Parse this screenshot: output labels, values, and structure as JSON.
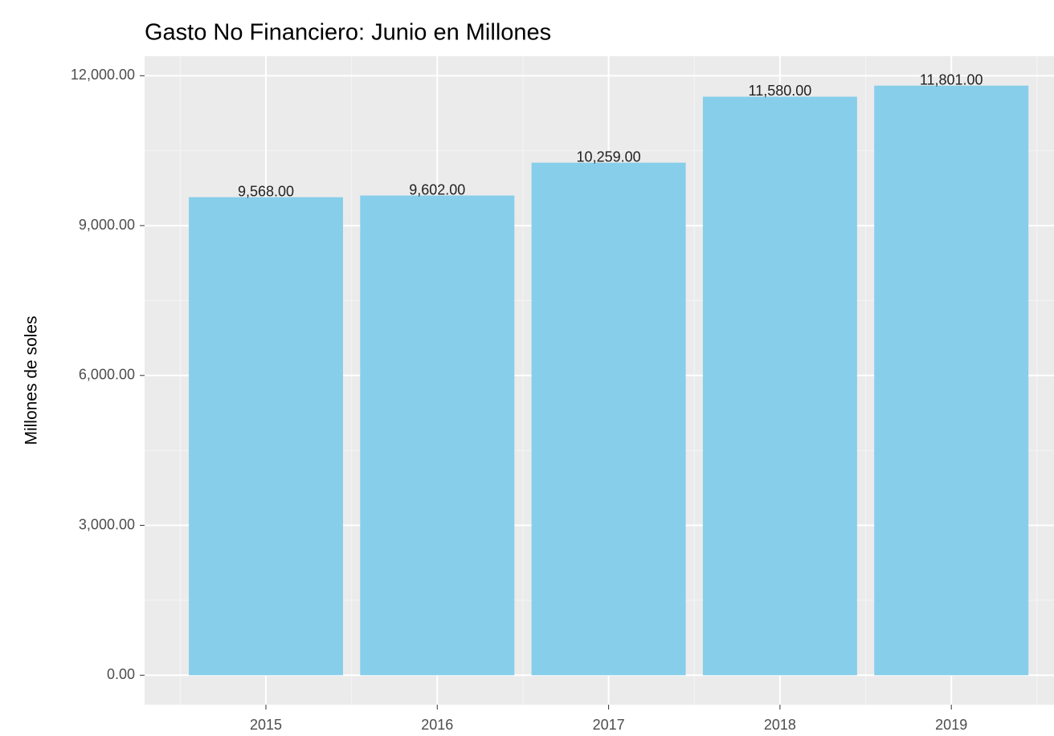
{
  "chart_data": {
    "type": "bar",
    "title": "Gasto No Financiero:  Junio  en Millones",
    "y_label": "Millones de soles",
    "categories": [
      "2015",
      "2016",
      "2017",
      "2018",
      "2019"
    ],
    "values": [
      9568,
      9602,
      10259,
      11580,
      11801
    ],
    "value_labels": [
      "9,568.00",
      "9,602.00",
      "10,259.00",
      "11,580.00",
      "11,801.00"
    ],
    "color": "#87ceeb",
    "ylim": [
      -590,
      12391
    ],
    "yticks": [
      {
        "value": 0,
        "label": "0.00"
      },
      {
        "value": 3000,
        "label": "3,000.00"
      },
      {
        "value": 6000,
        "label": "6,000.00"
      },
      {
        "value": 9000,
        "label": "9,000.00"
      },
      {
        "value": 12000,
        "label": "12,000.00"
      }
    ],
    "grid": true
  }
}
